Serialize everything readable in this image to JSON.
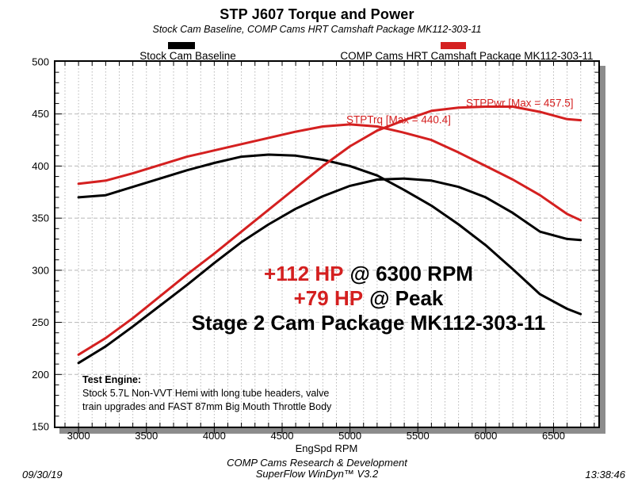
{
  "title": "STP J607 Torque and Power",
  "subtitle": "Stock Cam Baseline, COMP Cams HRT Camshaft Package MK112-303-11",
  "colors": {
    "accent_red": "#d42020",
    "curve_black": "#000000",
    "gridline": "#b8b8b8",
    "frame_shadow": "#8c8c8c"
  },
  "legend": [
    {
      "label": "Stock Cam Baseline",
      "color": "#000000"
    },
    {
      "label": "COMP Cams HRT Camshaft Package MK112-303-11",
      "color": "#d42020"
    }
  ],
  "chart_data": {
    "type": "line",
    "title": "STP J607 Torque and Power",
    "xlabel": "EngSpd RPM",
    "ylabel": "",
    "xlim": [
      2830,
      6830
    ],
    "ylim": [
      150,
      500
    ],
    "x_ticks": [
      3000,
      3500,
      4000,
      4500,
      5000,
      5500,
      6000,
      6500
    ],
    "y_ticks": [
      150,
      200,
      250,
      300,
      350,
      400,
      450,
      500
    ],
    "grid": "dashed",
    "legend_position": "top",
    "x": [
      3000,
      3200,
      3400,
      3600,
      3800,
      4000,
      4200,
      4400,
      4600,
      4800,
      5000,
      5200,
      5400,
      5600,
      5800,
      6000,
      6200,
      6400,
      6600,
      6700
    ],
    "series": [
      {
        "name": "STPTrq (Stock Cam Baseline)",
        "color": "#000000",
        "values": [
          370,
          372,
          380,
          388,
          396,
          403,
          409,
          411,
          410,
          406,
          400,
          391,
          377,
          362,
          344,
          324,
          301,
          277,
          263,
          258
        ]
      },
      {
        "name": "STPPwr (Stock Cam Baseline)",
        "color": "#000000",
        "values": [
          211,
          227,
          246,
          266,
          286,
          307,
          327,
          344,
          359,
          371,
          381,
          387,
          388,
          386,
          380,
          370,
          355,
          337,
          330,
          329
        ]
      },
      {
        "name": "STPTrq (COMP Cams HRT Camshaft Package MK112-303-11)",
        "color": "#d42020",
        "values": [
          383,
          386,
          393,
          401,
          409,
          415,
          421,
          427,
          433,
          438,
          440,
          438,
          432,
          425,
          413,
          400,
          387,
          372,
          354,
          348
        ]
      },
      {
        "name": "STPPwr (COMP Cams HRT Camshaft Package MK112-303-11)",
        "color": "#d42020",
        "values": [
          219,
          235,
          254,
          275,
          296,
          316,
          337,
          358,
          379,
          400,
          419,
          434,
          444,
          453,
          456,
          457,
          457,
          452,
          445,
          444
        ]
      }
    ],
    "curve_labels": [
      {
        "text": "STPTrq [Max = 440.4]",
        "rpm": 4973,
        "value": 441,
        "color": "#d42020"
      },
      {
        "text": "STPPwr [Max = 457.5]",
        "rpm": 5855,
        "value": 457,
        "color": "#d42020"
      }
    ]
  },
  "annotations": {
    "gain1": {
      "red": "+112 HP",
      "black": "@ 6300 RPM"
    },
    "gain2": {
      "red": "+79 HP",
      "black": "@ Peak"
    },
    "stage": "Stage 2 Cam Package MK112-303-11"
  },
  "test_engine": {
    "heading": "Test Engine:",
    "line1": "Stock 5.7L Non-VVT Hemi with long tube headers, valve",
    "line2": "train upgrades and FAST 87mm Big Mouth Throttle Body"
  },
  "footer": {
    "line1": "COMP Cams Research & Development",
    "line2": "SuperFlow WinDyn™ V3.2",
    "date": "09/30/19",
    "time": "13:38:46"
  }
}
